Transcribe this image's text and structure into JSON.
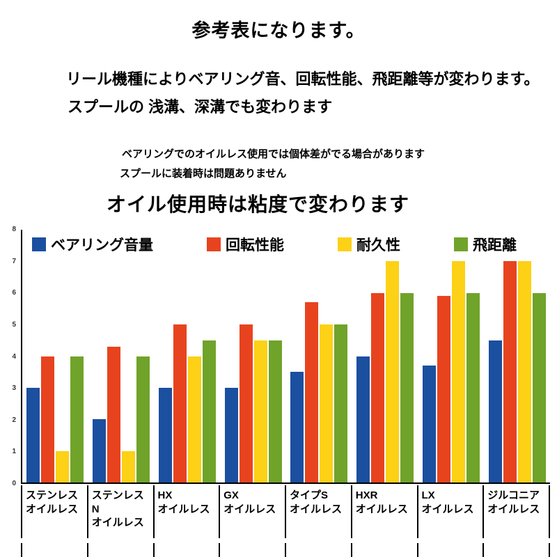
{
  "header": {
    "title": "参考表になります。",
    "line1": "リール機種によりベアリング音、回転性能、飛距離等が変わります。",
    "line2": "スプールの 浅溝、深溝でも変わります",
    "note1": "ベアリングでのオイルレス使用では個体差がでる場合があります",
    "note2": "スプールに装着時は問題ありません",
    "subtitle": "オイル使用時は粘度で変わります"
  },
  "chart_data": {
    "type": "bar",
    "categories": [
      "ステンレス\nオイルレス",
      "ステンレスN\nオイルレス",
      "HX\nオイルレス",
      "GX\nオイルレス",
      "タイプS\nオイルレス",
      "HXR\nオイルレス",
      "LX\nオイルレス",
      "ジルコニア\nオイルレス"
    ],
    "series": [
      {
        "name": "ベアリング音量",
        "color": "#1b4fa0",
        "values": [
          3,
          2,
          3,
          3,
          3.5,
          4,
          3.7,
          4.5
        ]
      },
      {
        "name": "回転性能",
        "color": "#e8431f",
        "values": [
          4,
          4.3,
          5,
          5,
          5.7,
          6,
          5.9,
          7
        ]
      },
      {
        "name": "耐久性",
        "color": "#fcd116",
        "values": [
          1,
          1,
          4,
          4.5,
          5,
          7,
          7,
          7
        ]
      },
      {
        "name": "飛距離",
        "color": "#70a32a",
        "values": [
          4,
          4,
          4.5,
          4.5,
          5,
          6,
          6,
          6
        ]
      }
    ],
    "title": "",
    "xlabel": "",
    "ylabel": "",
    "ylim": [
      0,
      8
    ],
    "yticks": [
      0,
      1,
      2,
      3,
      4,
      5,
      6,
      7,
      8
    ],
    "legend_position": "top",
    "grid": false
  }
}
